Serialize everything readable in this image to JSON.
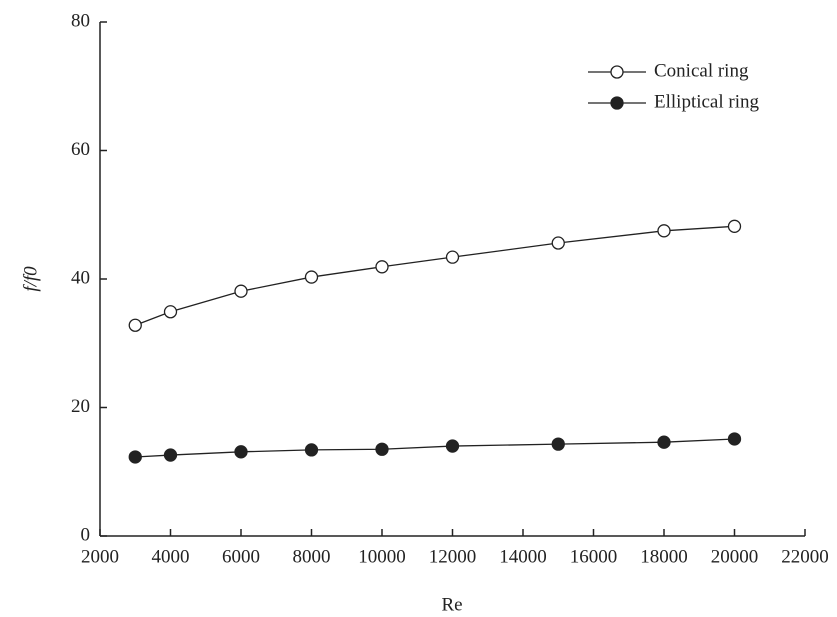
{
  "chart_data": {
    "type": "line",
    "x_label": "Re",
    "y_label": "f/f0",
    "x": [
      3000,
      4000,
      6000,
      8000,
      10000,
      12000,
      15000,
      18000,
      20000
    ],
    "series": [
      {
        "name": "Conical ring",
        "color": "#ffffff",
        "values": [
          32.8,
          34.9,
          38.1,
          40.3,
          41.9,
          43.4,
          45.6,
          47.5,
          48.2
        ]
      },
      {
        "name": "Elliptical ring",
        "color": "#222222",
        "values": [
          12.3,
          12.6,
          13.1,
          13.4,
          13.5,
          14.0,
          14.3,
          14.6,
          15.1
        ]
      }
    ],
    "xlim": [
      2000,
      22000
    ],
    "xticks": [
      2000,
      4000,
      6000,
      8000,
      10000,
      12000,
      14000,
      16000,
      18000,
      20000,
      22000
    ],
    "ylim": [
      0,
      80
    ],
    "yticks": [
      0,
      20,
      40,
      60,
      80
    ],
    "legend": "upper-right"
  }
}
